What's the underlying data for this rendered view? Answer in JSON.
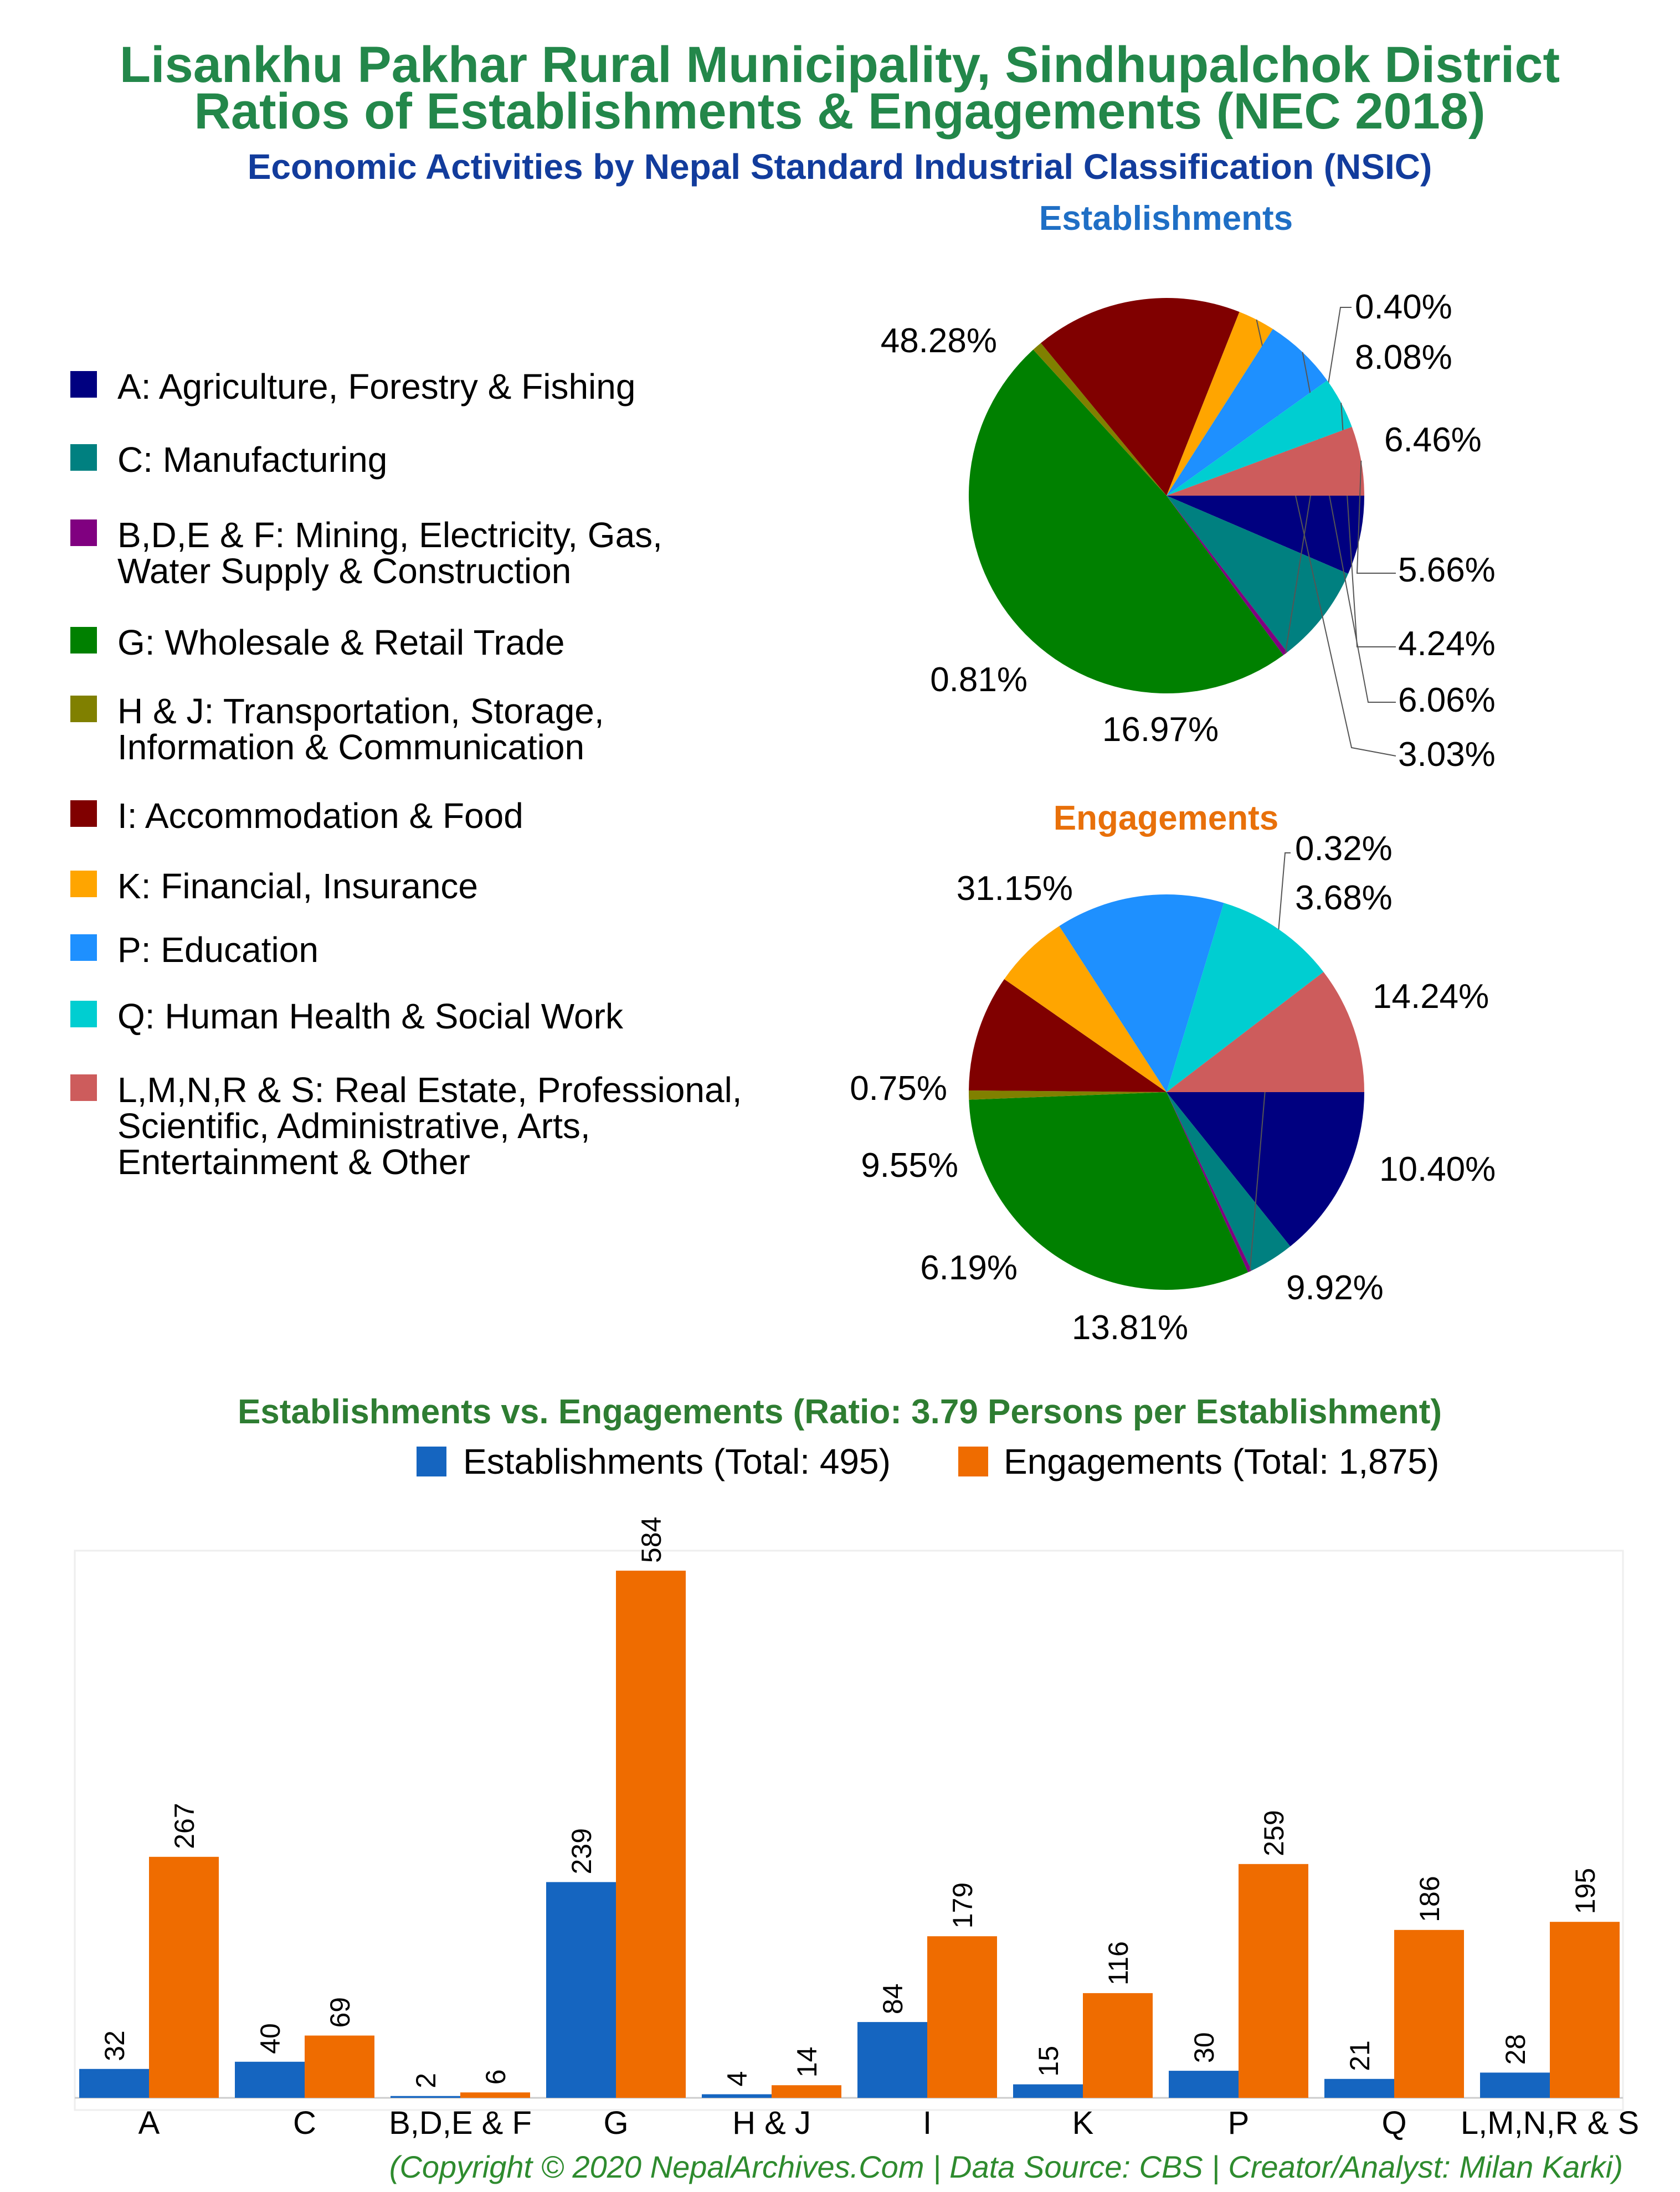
{
  "header": {
    "title_line1": "Lisankhu Pakhar Rural Municipality, Sindhupalchok District",
    "title_line2": "Ratios of Establishments & Engagements (NEC 2018)",
    "subtitle": "Economic Activities by Nepal Standard Industrial Classification (NSIC)"
  },
  "colors": {
    "title": "#23874a",
    "subtitle": "#123c9c",
    "establishments_title": "#1f6fc5",
    "engagements_title": "#e8700a",
    "bar_establishments": "#1565c0",
    "bar_engagements": "#ef6c00",
    "footer": "#2e8b2e"
  },
  "legend": {
    "items": [
      {
        "label_lines": [
          "A: Agriculture, Forestry & Fishing"
        ],
        "color": "#000080"
      },
      {
        "label_lines": [
          "C: Manufacturing"
        ],
        "color": "#008080"
      },
      {
        "label_lines": [
          "B,D,E & F: Mining, Electricity, Gas,",
          "Water Supply & Construction"
        ],
        "color": "#800080"
      },
      {
        "label_lines": [
          "G: Wholesale & Retail Trade"
        ],
        "color": "#008000"
      },
      {
        "label_lines": [
          "H & J: Transportation, Storage,",
          "Information & Communication"
        ],
        "color": "#808000"
      },
      {
        "label_lines": [
          "I: Accommodation & Food"
        ],
        "color": "#800000"
      },
      {
        "label_lines": [
          "K: Financial, Insurance"
        ],
        "color": "#ffa500"
      },
      {
        "label_lines": [
          "P: Education"
        ],
        "color": "#1e90ff"
      },
      {
        "label_lines": [
          "Q: Human Health & Social Work"
        ],
        "color": "#00ced1"
      },
      {
        "label_lines": [
          "L,M,N,R & S: Real Estate, Professional,",
          "Scientific, Administrative, Arts,",
          "Entertainment & Other"
        ],
        "color": "#cd5c5c"
      }
    ]
  },
  "chart_data": [
    {
      "type": "pie",
      "title": "Establishments",
      "slices": [
        {
          "category": "A",
          "value": 6.46,
          "label": "6.46%"
        },
        {
          "category": "C",
          "value": 8.08,
          "label": "8.08%"
        },
        {
          "category": "B,D,E & F",
          "value": 0.4,
          "label": "0.40%"
        },
        {
          "category": "G",
          "value": 48.28,
          "label": "48.28%"
        },
        {
          "category": "H & J",
          "value": 0.81,
          "label": "0.81%"
        },
        {
          "category": "I",
          "value": 16.97,
          "label": "16.97%"
        },
        {
          "category": "K",
          "value": 3.03,
          "label": "3.03%"
        },
        {
          "category": "P",
          "value": 6.06,
          "label": "6.06%"
        },
        {
          "category": "Q",
          "value": 4.24,
          "label": "4.24%"
        },
        {
          "category": "L,M,N,R & S",
          "value": 5.66,
          "label": "5.66%"
        }
      ]
    },
    {
      "type": "pie",
      "title": "Engagements",
      "slices": [
        {
          "category": "A",
          "value": 14.24,
          "label": "14.24%"
        },
        {
          "category": "C",
          "value": 3.68,
          "label": "3.68%"
        },
        {
          "category": "B,D,E & F",
          "value": 0.32,
          "label": "0.32%"
        },
        {
          "category": "G",
          "value": 31.15,
          "label": "31.15%"
        },
        {
          "category": "H & J",
          "value": 0.75,
          "label": "0.75%"
        },
        {
          "category": "I",
          "value": 9.55,
          "label": "9.55%"
        },
        {
          "category": "K",
          "value": 6.19,
          "label": "6.19%"
        },
        {
          "category": "P",
          "value": 13.81,
          "label": "13.81%"
        },
        {
          "category": "Q",
          "value": 9.92,
          "label": "9.92%"
        },
        {
          "category": "L,M,N,R & S",
          "value": 10.4,
          "label": "10.40%"
        }
      ]
    },
    {
      "type": "bar",
      "title": "Establishments vs. Engagements (Ratio: 3.79 Persons per Establishment)",
      "categories": [
        "A",
        "C",
        "B,D,E & F",
        "G",
        "H & J",
        "I",
        "K",
        "P",
        "Q",
        "L,M,N,R & S"
      ],
      "series": [
        {
          "name": "Establishments (Total: 495)",
          "values": [
            32,
            40,
            2,
            239,
            4,
            84,
            15,
            30,
            21,
            28
          ]
        },
        {
          "name": "Engagements (Total: 1,875)",
          "values": [
            267,
            69,
            6,
            584,
            14,
            179,
            116,
            259,
            186,
            195
          ]
        }
      ],
      "ylim": [
        0,
        600
      ],
      "legend": "top"
    }
  ],
  "footer": {
    "copyright": "(Copyright © 2020 NepalArchives.Com | Data Source: CBS | Creator/Analyst: Milan Karki)"
  }
}
